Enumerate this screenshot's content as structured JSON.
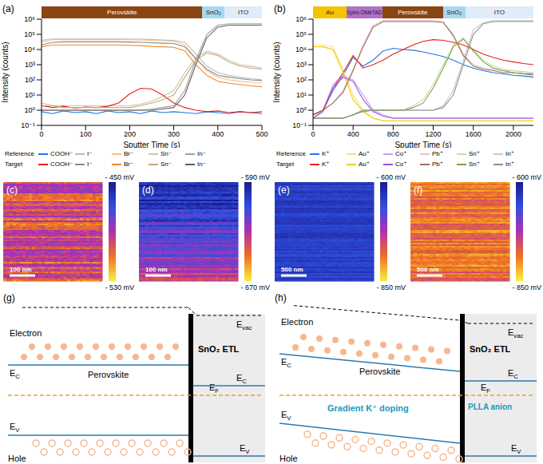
{
  "chart_data": [
    {
      "panel": "(a)",
      "type": "line",
      "log": "y",
      "grid": false,
      "x_label": "Sputter Time (s)",
      "y_label": "Intensity (counts)",
      "xlim": [
        0,
        500
      ],
      "xticks": [
        0,
        100,
        200,
        300,
        400,
        500
      ],
      "ylim": [
        0.1,
        1000000
      ],
      "yticks": [
        {
          "value": 0.1,
          "label": "10⁻¹"
        },
        {
          "value": 1,
          "label": "10⁰"
        },
        {
          "value": 10,
          "label": "10¹"
        },
        {
          "value": 100,
          "label": "10²"
        },
        {
          "value": 1000,
          "label": "10³"
        },
        {
          "value": 10000,
          "label": "10⁴"
        },
        {
          "value": 100000,
          "label": "10⁵"
        },
        {
          "value": 1000000,
          "label": "10⁶"
        }
      ],
      "layers": [
        {
          "label": "Perovskite",
          "start": 0,
          "end": 365,
          "color": "#8b4513"
        },
        {
          "label": "SnO₂",
          "start": 365,
          "end": 415,
          "color": "#a8d8f0"
        },
        {
          "label": "ITO",
          "start": 415,
          "end": 500,
          "color": "#e0ecf8"
        }
      ],
      "x": [
        0,
        25,
        50,
        75,
        100,
        125,
        150,
        175,
        200,
        225,
        250,
        275,
        300,
        325,
        350,
        375,
        400,
        425,
        450,
        475,
        500
      ],
      "series": [
        {
          "group": "Reference",
          "name": "COOH⁻",
          "color": "#1f77e4",
          "values": [
            0.8,
            0.6,
            0.9,
            0.7,
            0.8,
            0.6,
            0.9,
            0.7,
            0.8,
            0.6,
            0.9,
            0.7,
            0.8,
            0.7,
            0.6,
            0.8,
            0.7,
            0.6,
            0.8,
            0.7,
            0.6
          ]
        },
        {
          "group": "Reference",
          "name": "I⁻",
          "color": "#bbbbbb",
          "values": [
            40000,
            50000,
            50000,
            50000,
            50000,
            50000,
            50000,
            50000,
            50000,
            48000,
            45000,
            42000,
            40000,
            30000,
            5000,
            800,
            300,
            200,
            150,
            120,
            100
          ]
        },
        {
          "group": "Reference",
          "name": "Br⁻",
          "color": "#f5c08a",
          "values": [
            30000,
            45000,
            45000,
            45000,
            45000,
            45000,
            45000,
            45000,
            44000,
            42000,
            40000,
            38000,
            35000,
            20000,
            2500,
            400,
            150,
            100,
            80,
            70,
            60
          ]
        },
        {
          "group": "Reference",
          "name": "Sn⁻",
          "color": "#c8c8a0",
          "values": [
            3,
            2,
            2,
            2,
            2,
            2,
            2,
            2,
            2,
            2.5,
            4,
            8,
            20,
            300,
            3000,
            8000,
            5000,
            2000,
            1000,
            800,
            600
          ]
        },
        {
          "group": "Reference",
          "name": "In⁻",
          "color": "#a0a0a0",
          "values": [
            1,
            1,
            1,
            1,
            1,
            1,
            1,
            1,
            1,
            1,
            1.2,
            1.5,
            2,
            20,
            2000,
            100000,
            400000,
            500000,
            500000,
            500000,
            500000
          ]
        },
        {
          "group": "Target",
          "name": "COOH⁻",
          "color": "#e8201c",
          "values": [
            2,
            1.5,
            1.8,
            1.4,
            1.6,
            1.5,
            1.8,
            3,
            12,
            28,
            25,
            10,
            3,
            1.5,
            1,
            0.8,
            0.9,
            0.7,
            0.8,
            0.7,
            0.8
          ]
        },
        {
          "group": "Target",
          "name": "I⁻",
          "color": "#888888",
          "values": [
            20000,
            30000,
            32000,
            32000,
            32000,
            32000,
            32000,
            32000,
            31000,
            30000,
            28000,
            26000,
            25000,
            15000,
            2500,
            500,
            200,
            150,
            120,
            100,
            90
          ]
        },
        {
          "group": "Target",
          "name": "Br⁻",
          "color": "#f08a30",
          "values": [
            15000,
            20000,
            20000,
            20000,
            20000,
            20000,
            20000,
            20000,
            19000,
            18000,
            16000,
            15000,
            14000,
            8000,
            1000,
            200,
            80,
            60,
            50,
            40,
            35
          ]
        },
        {
          "group": "Target",
          "name": "Sn⁻",
          "color": "#c8a878",
          "values": [
            2,
            2,
            1.5,
            1.5,
            1.5,
            1.5,
            1.5,
            1.5,
            1.5,
            2,
            3,
            5,
            10,
            150,
            2000,
            6000,
            4000,
            1500,
            800,
            600,
            500
          ]
        },
        {
          "group": "Target",
          "name": "In⁻",
          "color": "#606060",
          "values": [
            1,
            1,
            1,
            1,
            1,
            1,
            1,
            1,
            1,
            1,
            1,
            1.2,
            1.5,
            10,
            1000,
            60000,
            300000,
            400000,
            400000,
            400000,
            400000
          ]
        }
      ]
    },
    {
      "panel": "(b)",
      "type": "line",
      "log": "y",
      "grid": false,
      "x_label": "Sputter Time (s)",
      "y_label": "Intensity (counts)",
      "xlim": [
        0,
        2200
      ],
      "xticks": [
        0,
        400,
        800,
        1200,
        1600,
        2000
      ],
      "ylim": [
        0.1,
        1000000
      ],
      "yticks": [
        {
          "value": 0.1,
          "label": "10⁻¹"
        },
        {
          "value": 1,
          "label": "10⁰"
        },
        {
          "value": 10,
          "label": "10¹"
        },
        {
          "value": 100,
          "label": "10²"
        },
        {
          "value": 1000,
          "label": "10³"
        },
        {
          "value": 10000,
          "label": "10⁴"
        },
        {
          "value": 100000,
          "label": "10⁵"
        },
        {
          "value": 1000000,
          "label": "10⁶"
        }
      ],
      "layers": [
        {
          "label": "Au",
          "start": 0,
          "end": 335,
          "color": "#f5c400"
        },
        {
          "label": "Spiro-OMeTAD",
          "start": 335,
          "end": 690,
          "color": "#b070c8"
        },
        {
          "label": "Perovskite",
          "start": 690,
          "end": 1300,
          "color": "#8b4513"
        },
        {
          "label": "SnO₂",
          "start": 1300,
          "end": 1520,
          "color": "#a8d8f0"
        },
        {
          "label": "ITO",
          "start": 1520,
          "end": 2200,
          "color": "#e0ecf8"
        }
      ],
      "x": [
        0,
        100,
        200,
        300,
        400,
        500,
        600,
        700,
        800,
        900,
        1000,
        1100,
        1200,
        1300,
        1400,
        1500,
        1600,
        1700,
        1800,
        1900,
        2000,
        2100,
        2200
      ],
      "series": [
        {
          "group": "Reference",
          "name": "K⁺",
          "color": "#1f77e4",
          "values": [
            0.5,
            1,
            20,
            200,
            3000,
            800,
            2000,
            8000,
            12000,
            10000,
            9000,
            7000,
            5000,
            3500,
            2000,
            1000,
            600,
            400,
            300,
            250,
            200,
            180,
            150
          ]
        },
        {
          "group": "Reference",
          "name": "Au⁺",
          "color": "#f5e08a",
          "values": [
            20000,
            20000,
            15000,
            500,
            10,
            1,
            0.3,
            0.2,
            0.2,
            0.2,
            0.2,
            0.2,
            0.2,
            0.2,
            0.2,
            0.2,
            0.2,
            0.2,
            0.2,
            0.2,
            0.2,
            0.2,
            0.2
          ]
        },
        {
          "group": "Reference",
          "name": "Co⁺",
          "color": "#c8a0e8",
          "values": [
            0.3,
            1,
            50,
            200,
            100,
            10,
            1,
            0.5,
            0.3,
            0.3,
            0.3,
            0.3,
            0.3,
            0.3,
            0.3,
            0.3,
            0.3,
            0.3,
            0.3,
            0.3,
            0.3,
            0.3,
            0.3
          ]
        },
        {
          "group": "Reference",
          "name": "Pb⁺",
          "color": "#e8c0c0",
          "values": [
            0.5,
            1,
            3,
            20,
            500,
            20000,
            400000,
            800000,
            800000,
            800000,
            800000,
            800000,
            800000,
            700000,
            100000,
            5000,
            1000,
            600,
            500,
            400,
            400,
            350,
            300
          ]
        },
        {
          "group": "Reference",
          "name": "Sn⁺",
          "color": "#c0e0b0",
          "values": [
            0.3,
            0.3,
            0.3,
            0.3,
            0.5,
            1,
            1,
            1,
            1,
            1,
            2,
            5,
            50,
            1000,
            20000,
            60000,
            10000,
            2000,
            800,
            500,
            400,
            300,
            250
          ]
        },
        {
          "group": "Reference",
          "name": "In⁺",
          "color": "#c8c8c8",
          "values": [
            0.3,
            0.3,
            0.3,
            0.3,
            0.5,
            1,
            1,
            1,
            1,
            1,
            1,
            1,
            1,
            2,
            20,
            2000,
            200000,
            600000,
            800000,
            800000,
            800000,
            800000,
            800000
          ]
        },
        {
          "group": "Target",
          "name": "K⁺",
          "color": "#e8201c",
          "values": [
            0.5,
            1,
            30,
            300,
            4000,
            600,
            1000,
            2000,
            5000,
            10000,
            20000,
            35000,
            45000,
            40000,
            30000,
            20000,
            10000,
            5000,
            3000,
            2000,
            1500,
            1200,
            1000
          ]
        },
        {
          "group": "Target",
          "name": "Au⁺",
          "color": "#f0d000",
          "values": [
            15000,
            15000,
            10000,
            300,
            5,
            0.8,
            0.3,
            0.2,
            0.2,
            0.2,
            0.2,
            0.2,
            0.2,
            0.2,
            0.2,
            0.2,
            0.2,
            0.2,
            0.2,
            0.2,
            0.2,
            0.2,
            0.2
          ]
        },
        {
          "group": "Target",
          "name": "Co⁺",
          "color": "#a050e0",
          "values": [
            0.3,
            0.8,
            30,
            150,
            80,
            5,
            0.8,
            0.4,
            0.3,
            0.3,
            0.3,
            0.3,
            0.3,
            0.3,
            0.3,
            0.3,
            0.3,
            0.3,
            0.3,
            0.3,
            0.3,
            0.3,
            0.3
          ]
        },
        {
          "group": "Target",
          "name": "Pb⁺",
          "color": "#a07060",
          "values": [
            0.5,
            1,
            3,
            15,
            400,
            15000,
            300000,
            700000,
            700000,
            700000,
            700000,
            700000,
            700000,
            600000,
            80000,
            4000,
            800,
            500,
            400,
            300,
            300,
            250,
            250
          ]
        },
        {
          "group": "Target",
          "name": "Sn⁺",
          "color": "#80a040",
          "values": [
            0.3,
            0.3,
            0.3,
            0.3,
            0.5,
            1,
            1,
            1,
            1,
            1,
            1.5,
            3,
            30,
            600,
            15000,
            50000,
            8000,
            1500,
            600,
            400,
            300,
            250,
            200
          ]
        },
        {
          "group": "Target",
          "name": "In⁺",
          "color": "#909090",
          "values": [
            0.3,
            0.3,
            0.3,
            0.3,
            0.5,
            0.8,
            1,
            1,
            1,
            1,
            1,
            1,
            1,
            1.5,
            10,
            1000,
            100000,
            500000,
            700000,
            700000,
            700000,
            700000,
            700000
          ]
        }
      ]
    }
  ],
  "kpfm_images": [
    {
      "panel": "(c)",
      "scale_bar": "100 nm",
      "colorbar": [
        {
          "value": -450,
          "label": "- 450 mV"
        },
        {
          "value": -530,
          "label": "- 530 mV"
        }
      ]
    },
    {
      "panel": "(d)",
      "scale_bar": "100 nm",
      "colorbar": [
        {
          "value": -590,
          "label": "- 590 mV"
        },
        {
          "value": -670,
          "label": "- 670 mV"
        }
      ]
    },
    {
      "panel": "(e)",
      "scale_bar": "500 nm",
      "colorbar": [
        {
          "value": -600,
          "label": "- 600 mV"
        },
        {
          "value": -850,
          "label": "- 850 mV"
        }
      ]
    },
    {
      "panel": "(f)",
      "scale_bar": "500 nm",
      "colorbar": [
        {
          "value": -600,
          "label": "- 600 mV"
        },
        {
          "value": -850,
          "label": "- 850 mV"
        }
      ]
    }
  ],
  "band_diagrams": [
    {
      "panel": "(g)",
      "electron": "Electron",
      "hole": "Hole",
      "absorber": "Perovskite",
      "etl": "SnO₂ ETL",
      "ec_left": {
        "text": "E",
        "sub": "C"
      },
      "ev_left": {
        "text": "E",
        "sub": "V"
      },
      "ec_right": {
        "text": "E",
        "sub": "C"
      },
      "ev_right": {
        "text": "E",
        "sub": "V"
      },
      "ef": {
        "text": "E",
        "sub": "F"
      },
      "evac": {
        "text": "E",
        "sub": "vac"
      }
    },
    {
      "panel": "(h)",
      "electron": "Electron",
      "hole": "Hole",
      "absorber": "Perovskite",
      "etl": "SnO₂ ETL",
      "ec_left": {
        "text": "E",
        "sub": "C"
      },
      "ev_left": {
        "text": "E",
        "sub": "V"
      },
      "ec_right": {
        "text": "E",
        "sub": "C"
      },
      "ev_right": {
        "text": "E",
        "sub": "V"
      },
      "ef": {
        "text": "E",
        "sub": "F"
      },
      "evac": {
        "text": "E",
        "sub": "vac"
      },
      "doping": "Gradient K⁺ doping",
      "interface": "PLLA anion"
    }
  ]
}
